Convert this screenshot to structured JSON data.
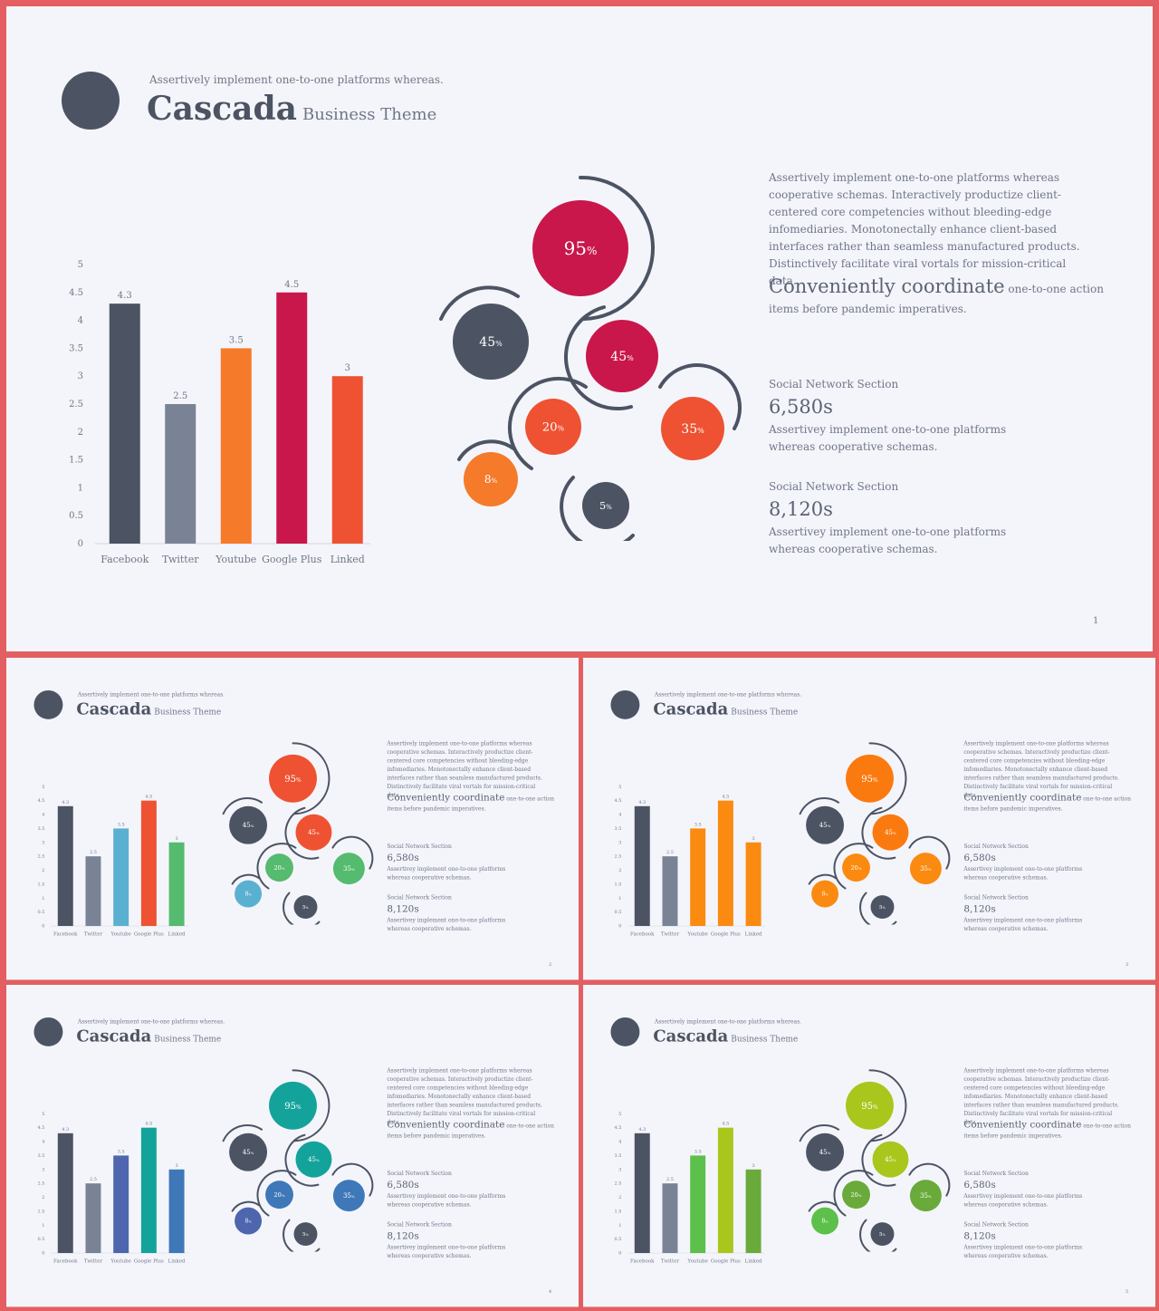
{
  "slide": {
    "tagline": "Assertively implement one-to-one platforms whereas.",
    "title": "Cascada",
    "subtitle": "Business Theme",
    "paragraph": "Assertively implement one-to-one platforms whereas cooperative schemas. Interactively productize client-centered core competencies without bleeding-edge infomediaries. Monotonectally enhance client-based interfaces rather than seamless manufactured products. Distinctively facilitate viral vortals for mission-critical data.",
    "highlight_big": "Conveniently coordinate",
    "highlight_small": " one-to-one action items before pandemic imperatives.",
    "sections": [
      {
        "label": "Social Network Section",
        "value": "6,580s",
        "text": "Assertivey implement one-to-one platforms whereas cooperative schemas."
      },
      {
        "label": "Social Network Section",
        "value": "8,120s",
        "text": "Assertivey implement one-to-one platforms whereas cooperative schemas."
      }
    ]
  },
  "chart_data": {
    "type": "bar",
    "categories": [
      "Facebook",
      "Twitter",
      "Youtube",
      "Google Plus",
      "Linked"
    ],
    "values": [
      4.3,
      2.5,
      3.5,
      4.5,
      3
    ],
    "value_labels": [
      "4.3",
      "2.5",
      "3.5",
      "4.5",
      "3"
    ],
    "y_ticks": [
      "0",
      "0.5",
      "1",
      "1.5",
      "2",
      "2.5",
      "3",
      "3.5",
      "4",
      "4.5",
      "5"
    ],
    "ylim": [
      0,
      5
    ],
    "grid": false
  },
  "bubbles": [
    {
      "value": "95",
      "unit": "%"
    },
    {
      "value": "45",
      "unit": "%"
    },
    {
      "value": "45",
      "unit": "%"
    },
    {
      "value": "20",
      "unit": "%"
    },
    {
      "value": "35",
      "unit": "%"
    },
    {
      "value": "8",
      "unit": "%"
    },
    {
      "value": "5",
      "unit": "%"
    }
  ],
  "slides": [
    {
      "page": "1",
      "bar_colors": [
        "#4c5463",
        "#7a8395",
        "#f57a2a",
        "#c9174b",
        "#ee5232"
      ],
      "bubble_colors": [
        "#c9174b",
        "#4c5463",
        "#c9174b",
        "#ee5232",
        "#ee5232",
        "#f57a2a",
        "#4c5463"
      ]
    },
    {
      "page": "2",
      "bar_colors": [
        "#4c5463",
        "#7a8395",
        "#5ab0d0",
        "#ee5232",
        "#55bb6e"
      ],
      "bubble_colors": [
        "#ee5232",
        "#4c5463",
        "#ee5232",
        "#55bb6e",
        "#55bb6e",
        "#5ab0d0",
        "#4c5463"
      ]
    },
    {
      "page": "3",
      "bar_colors": [
        "#4c5463",
        "#7a8395",
        "#fb8a10",
        "#fb8a10",
        "#fb8a10"
      ],
      "bubble_colors": [
        "#fb7a10",
        "#4c5463",
        "#fb7a10",
        "#fb8a10",
        "#fb8a10",
        "#fb8a10",
        "#4c5463"
      ]
    },
    {
      "page": "4",
      "bar_colors": [
        "#4c5463",
        "#7a8395",
        "#4e66ad",
        "#13a39a",
        "#3f78b8"
      ],
      "bubble_colors": [
        "#13a39a",
        "#4c5463",
        "#13a39a",
        "#3f78b8",
        "#3f78b8",
        "#4e66ad",
        "#4c5463"
      ]
    },
    {
      "page": "5",
      "bar_colors": [
        "#4c5463",
        "#7a8395",
        "#5cc04a",
        "#a9c61c",
        "#6aaa3a"
      ],
      "bubble_colors": [
        "#a9c61c",
        "#4c5463",
        "#a9c61c",
        "#6aaa3a",
        "#6aaa3a",
        "#5cc04a",
        "#4c5463"
      ]
    }
  ]
}
